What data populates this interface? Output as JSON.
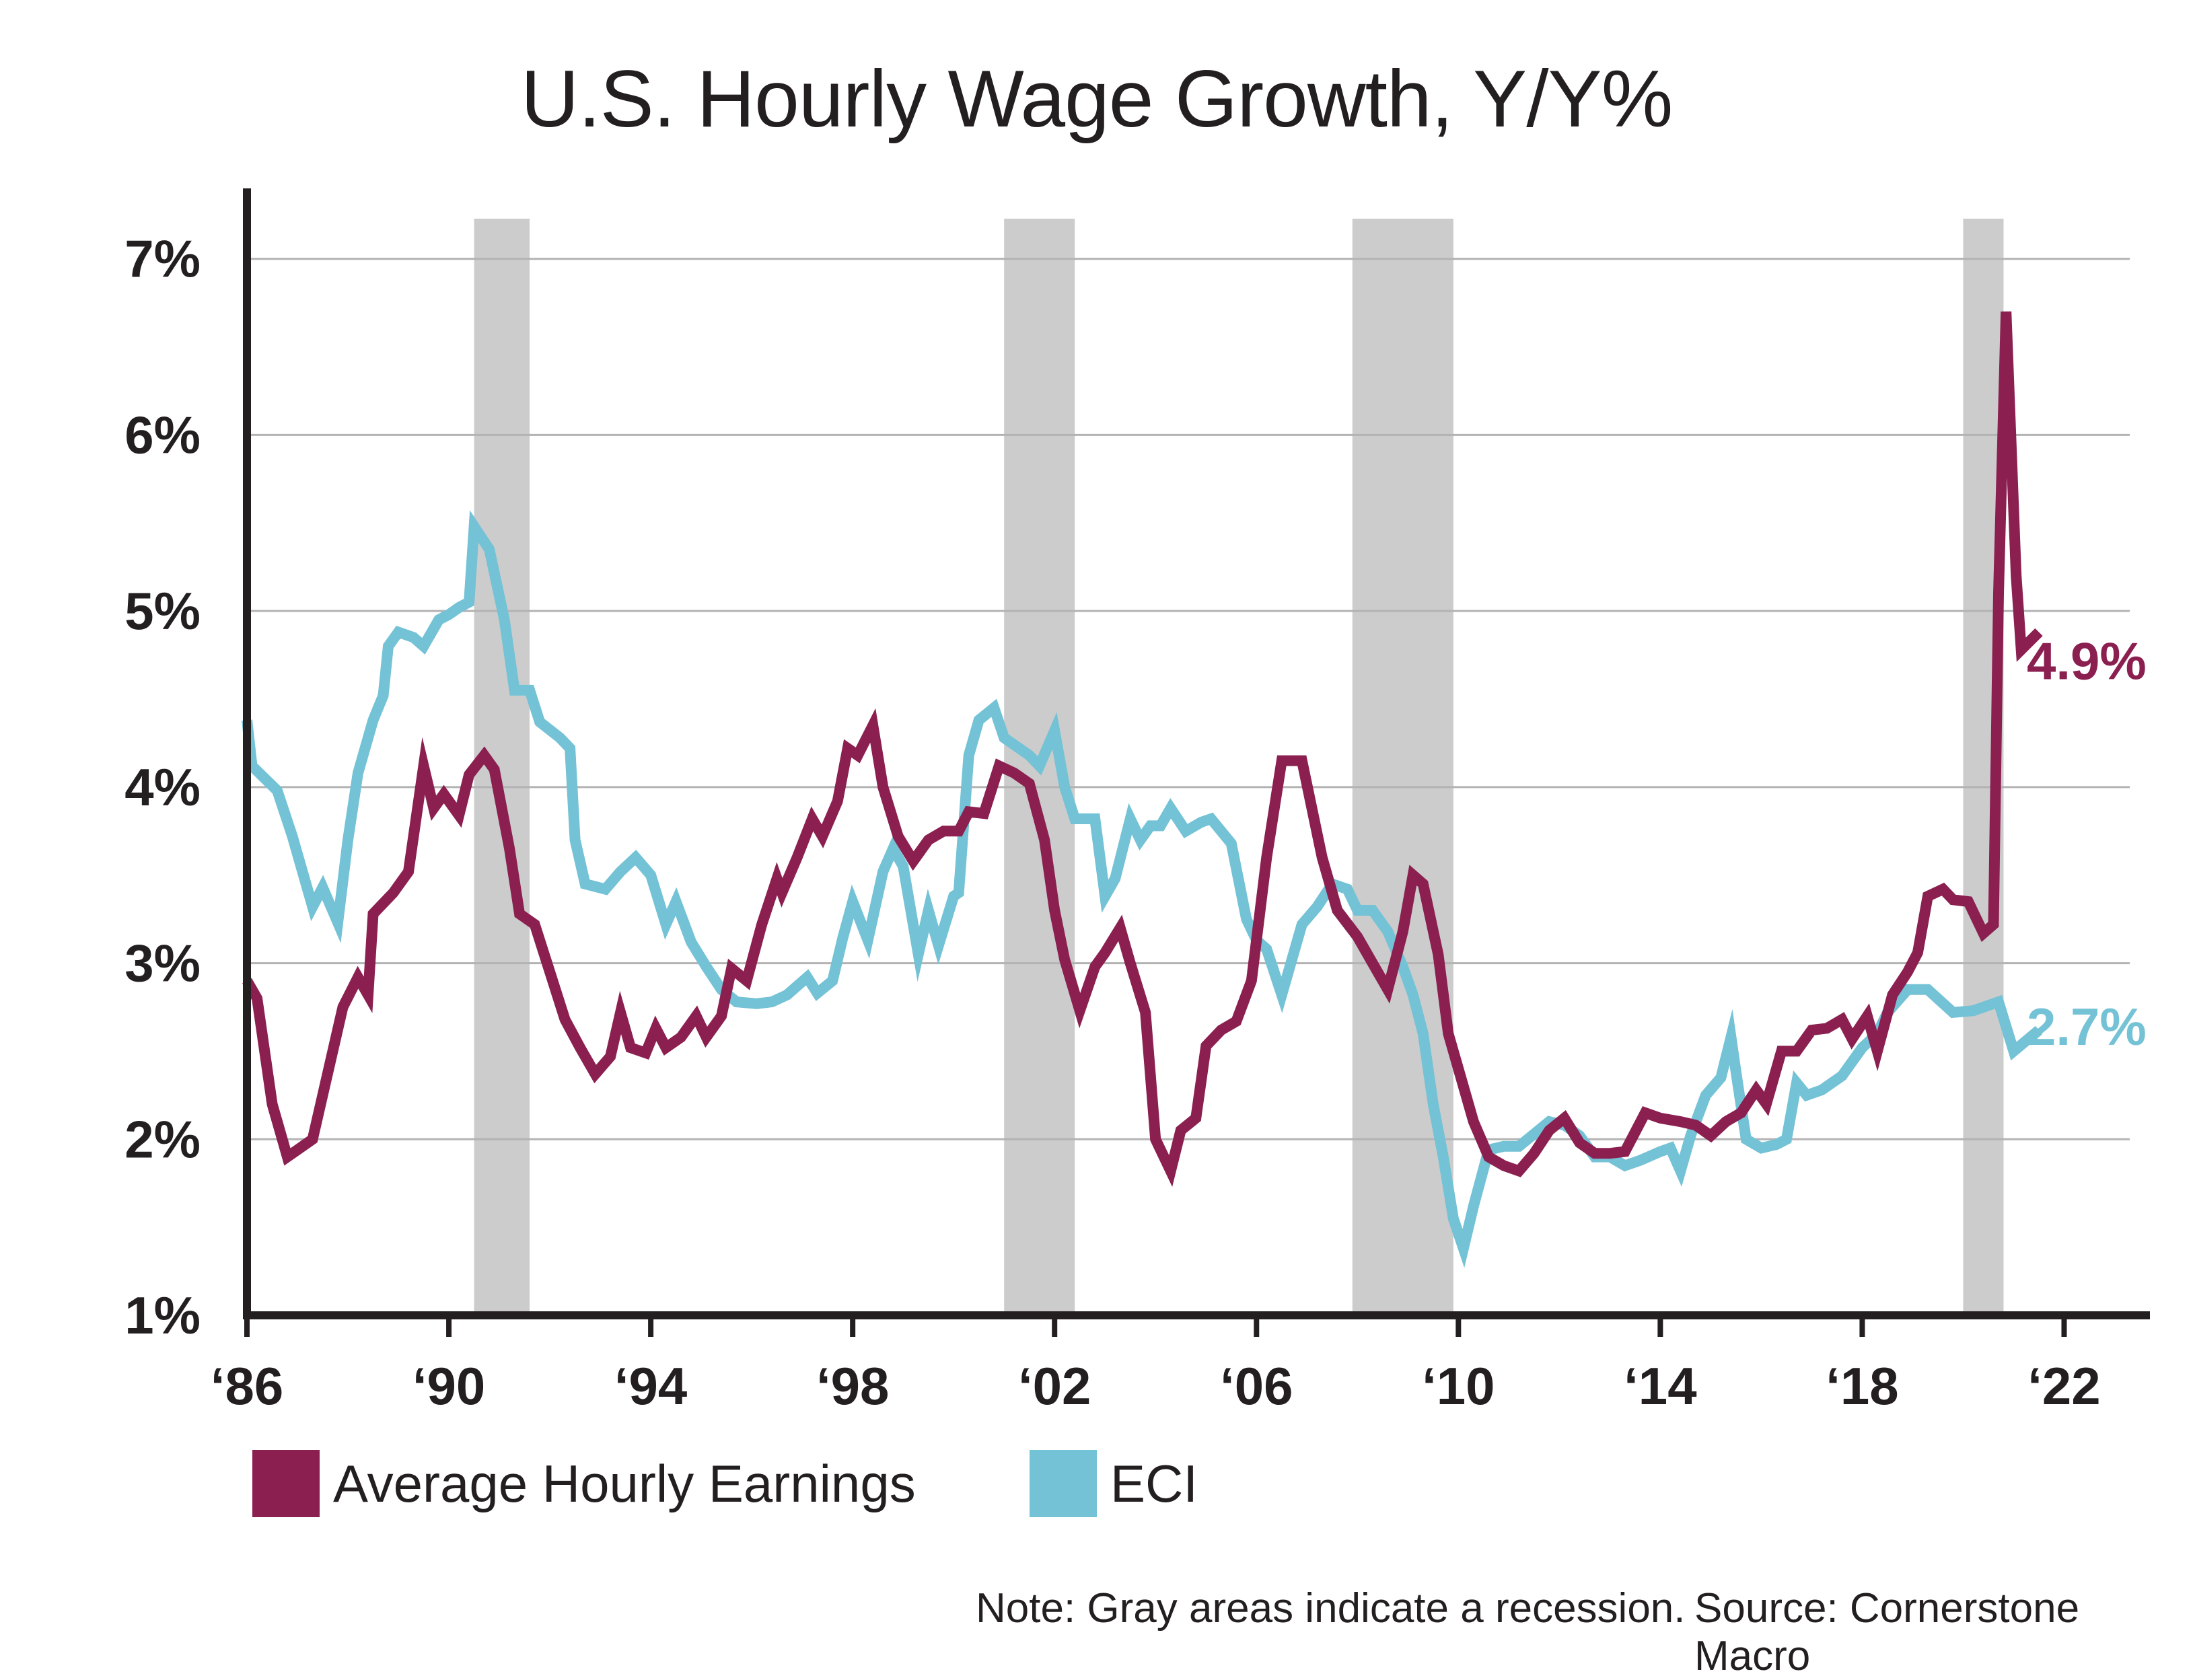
{
  "chart_data": {
    "type": "line",
    "title": "U.S. Hourly Wage Growth, Y/Y%",
    "xlabel": "",
    "ylabel": "",
    "xlim": [
      1986,
      2023.7
    ],
    "ylim": [
      1,
      7.4
    ],
    "y_ticks": [
      1,
      2,
      3,
      4,
      5,
      6,
      7
    ],
    "y_tick_labels": [
      "1%",
      "2%",
      "3%",
      "4%",
      "5%",
      "6%",
      "7%"
    ],
    "x_ticks": [
      1986,
      1990,
      1994,
      1998,
      2002,
      2006,
      2010,
      2014,
      2018,
      2022
    ],
    "x_tick_labels": [
      "‘86",
      "‘90",
      "‘94",
      "‘98",
      "‘02",
      "‘06",
      "‘10",
      "‘14",
      "‘18",
      "‘22"
    ],
    "grid": "horizontal",
    "recessions": [
      [
        1990.5,
        1991.6
      ],
      [
        2001.0,
        2002.4
      ],
      [
        2007.9,
        2009.9
      ],
      [
        2020.0,
        2020.8
      ]
    ],
    "series": [
      {
        "name": "Average Hourly Earnings",
        "color": "#8b2050",
        "end_label": "4.9%",
        "points": [
          [
            1986.0,
            2.9
          ],
          [
            1986.2,
            2.8
          ],
          [
            1986.5,
            2.2
          ],
          [
            1986.8,
            1.9
          ],
          [
            1987.3,
            2.0
          ],
          [
            1987.7,
            2.5
          ],
          [
            1987.9,
            2.75
          ],
          [
            1988.2,
            2.92
          ],
          [
            1988.4,
            2.82
          ],
          [
            1988.5,
            3.28
          ],
          [
            1988.9,
            3.4
          ],
          [
            1989.2,
            3.52
          ],
          [
            1989.5,
            4.12
          ],
          [
            1989.7,
            3.88
          ],
          [
            1989.9,
            3.96
          ],
          [
            1990.2,
            3.84
          ],
          [
            1990.4,
            4.07
          ],
          [
            1990.7,
            4.18
          ],
          [
            1990.9,
            4.1
          ],
          [
            1991.2,
            3.65
          ],
          [
            1991.4,
            3.28
          ],
          [
            1991.7,
            3.22
          ],
          [
            1992.0,
            2.95
          ],
          [
            1992.3,
            2.68
          ],
          [
            1992.6,
            2.52
          ],
          [
            1992.9,
            2.37
          ],
          [
            1993.2,
            2.47
          ],
          [
            1993.4,
            2.72
          ],
          [
            1993.6,
            2.52
          ],
          [
            1993.9,
            2.49
          ],
          [
            1994.1,
            2.63
          ],
          [
            1994.3,
            2.52
          ],
          [
            1994.6,
            2.58
          ],
          [
            1994.9,
            2.7
          ],
          [
            1995.1,
            2.58
          ],
          [
            1995.4,
            2.7
          ],
          [
            1995.6,
            2.97
          ],
          [
            1995.9,
            2.9
          ],
          [
            1996.2,
            3.22
          ],
          [
            1996.5,
            3.48
          ],
          [
            1996.6,
            3.4
          ],
          [
            1996.9,
            3.6
          ],
          [
            1997.2,
            3.82
          ],
          [
            1997.4,
            3.72
          ],
          [
            1997.7,
            3.92
          ],
          [
            1997.9,
            4.22
          ],
          [
            1998.1,
            4.18
          ],
          [
            1998.4,
            4.35
          ],
          [
            1998.6,
            4.0
          ],
          [
            1998.9,
            3.72
          ],
          [
            1999.2,
            3.58
          ],
          [
            1999.5,
            3.7
          ],
          [
            1999.8,
            3.75
          ],
          [
            2000.1,
            3.75
          ],
          [
            2000.3,
            3.86
          ],
          [
            2000.6,
            3.85
          ],
          [
            2000.9,
            4.12
          ],
          [
            2001.2,
            4.08
          ],
          [
            2001.5,
            4.02
          ],
          [
            2001.8,
            3.7
          ],
          [
            2002.0,
            3.3
          ],
          [
            2002.2,
            3.02
          ],
          [
            2002.5,
            2.73
          ],
          [
            2002.8,
            2.98
          ],
          [
            2003.0,
            3.06
          ],
          [
            2003.3,
            3.2
          ],
          [
            2003.5,
            3.0
          ],
          [
            2003.8,
            2.72
          ],
          [
            2004.0,
            2.0
          ],
          [
            2004.3,
            1.82
          ],
          [
            2004.5,
            2.05
          ],
          [
            2004.8,
            2.12
          ],
          [
            2005.0,
            2.53
          ],
          [
            2005.3,
            2.62
          ],
          [
            2005.6,
            2.67
          ],
          [
            2005.9,
            2.9
          ],
          [
            2006.2,
            3.6
          ],
          [
            2006.5,
            4.15
          ],
          [
            2006.9,
            4.15
          ],
          [
            2007.3,
            3.6
          ],
          [
            2007.6,
            3.3
          ],
          [
            2008.0,
            3.15
          ],
          [
            2008.3,
            3.0
          ],
          [
            2008.6,
            2.85
          ],
          [
            2008.9,
            3.18
          ],
          [
            2009.1,
            3.5
          ],
          [
            2009.3,
            3.45
          ],
          [
            2009.6,
            3.05
          ],
          [
            2009.8,
            2.6
          ],
          [
            2010.0,
            2.4
          ],
          [
            2010.3,
            2.1
          ],
          [
            2010.6,
            1.9
          ],
          [
            2010.9,
            1.85
          ],
          [
            2011.2,
            1.82
          ],
          [
            2011.5,
            1.92
          ],
          [
            2011.8,
            2.05
          ],
          [
            2012.1,
            2.12
          ],
          [
            2012.4,
            1.98
          ],
          [
            2012.7,
            1.92
          ],
          [
            2013.0,
            1.92
          ],
          [
            2013.3,
            1.93
          ],
          [
            2013.7,
            2.15
          ],
          [
            2014.0,
            2.12
          ],
          [
            2014.4,
            2.1
          ],
          [
            2014.7,
            2.08
          ],
          [
            2015.0,
            2.02
          ],
          [
            2015.3,
            2.1
          ],
          [
            2015.6,
            2.15
          ],
          [
            2015.9,
            2.28
          ],
          [
            2016.1,
            2.2
          ],
          [
            2016.4,
            2.5
          ],
          [
            2016.7,
            2.5
          ],
          [
            2017.0,
            2.62
          ],
          [
            2017.3,
            2.63
          ],
          [
            2017.6,
            2.68
          ],
          [
            2017.8,
            2.57
          ],
          [
            2018.1,
            2.7
          ],
          [
            2018.3,
            2.5
          ],
          [
            2018.6,
            2.82
          ],
          [
            2018.9,
            2.95
          ],
          [
            2019.1,
            3.06
          ],
          [
            2019.3,
            3.38
          ],
          [
            2019.6,
            3.42
          ],
          [
            2019.8,
            3.36
          ],
          [
            2020.1,
            3.35
          ],
          [
            2020.4,
            3.17
          ],
          [
            2020.6,
            3.22
          ],
          [
            2020.7,
            5.1
          ],
          [
            2020.85,
            6.7
          ],
          [
            2021.05,
            5.2
          ],
          [
            2021.15,
            4.78
          ],
          [
            2021.5,
            4.88
          ]
        ]
      },
      {
        "name": "ECI",
        "color": "#74c2d5",
        "end_label": "2.7%",
        "points": [
          [
            1986.0,
            4.38
          ],
          [
            1986.1,
            4.12
          ],
          [
            1986.6,
            3.98
          ],
          [
            1986.9,
            3.72
          ],
          [
            1987.1,
            3.52
          ],
          [
            1987.3,
            3.32
          ],
          [
            1987.5,
            3.43
          ],
          [
            1987.8,
            3.23
          ],
          [
            1988.0,
            3.7
          ],
          [
            1988.2,
            4.08
          ],
          [
            1988.5,
            4.38
          ],
          [
            1988.7,
            4.52
          ],
          [
            1988.8,
            4.8
          ],
          [
            1989.0,
            4.88
          ],
          [
            1989.3,
            4.85
          ],
          [
            1989.5,
            4.8
          ],
          [
            1989.8,
            4.95
          ],
          [
            1990.0,
            4.98
          ],
          [
            1990.2,
            5.02
          ],
          [
            1990.4,
            5.05
          ],
          [
            1990.5,
            5.48
          ],
          [
            1990.8,
            5.35
          ],
          [
            1991.1,
            4.95
          ],
          [
            1991.3,
            4.55
          ],
          [
            1991.6,
            4.55
          ],
          [
            1991.8,
            4.37
          ],
          [
            1992.2,
            4.28
          ],
          [
            1992.4,
            4.22
          ],
          [
            1992.5,
            3.7
          ],
          [
            1992.7,
            3.45
          ],
          [
            1993.1,
            3.42
          ],
          [
            1993.4,
            3.52
          ],
          [
            1993.7,
            3.6
          ],
          [
            1994.0,
            3.5
          ],
          [
            1994.3,
            3.22
          ],
          [
            1994.5,
            3.35
          ],
          [
            1994.8,
            3.12
          ],
          [
            1995.1,
            2.98
          ],
          [
            1995.4,
            2.85
          ],
          [
            1995.7,
            2.78
          ],
          [
            1996.1,
            2.77
          ],
          [
            1996.4,
            2.78
          ],
          [
            1996.7,
            2.82
          ],
          [
            1997.1,
            2.92
          ],
          [
            1997.3,
            2.83
          ],
          [
            1997.6,
            2.9
          ],
          [
            1997.8,
            3.14
          ],
          [
            1998.0,
            3.35
          ],
          [
            1998.3,
            3.13
          ],
          [
            1998.6,
            3.52
          ],
          [
            1998.8,
            3.65
          ],
          [
            1999.0,
            3.55
          ],
          [
            1999.3,
            3.05
          ],
          [
            1999.5,
            3.3
          ],
          [
            1999.7,
            3.1
          ],
          [
            2000.0,
            3.38
          ],
          [
            2000.1,
            3.4
          ],
          [
            2000.3,
            4.18
          ],
          [
            2000.5,
            4.38
          ],
          [
            2000.8,
            4.45
          ],
          [
            2001.0,
            4.28
          ],
          [
            2001.5,
            4.18
          ],
          [
            2001.7,
            4.12
          ],
          [
            2002.0,
            4.32
          ],
          [
            2002.2,
            4.0
          ],
          [
            2002.4,
            3.82
          ],
          [
            2002.8,
            3.82
          ],
          [
            2003.0,
            3.38
          ],
          [
            2003.2,
            3.48
          ],
          [
            2003.5,
            3.82
          ],
          [
            2003.7,
            3.7
          ],
          [
            2003.9,
            3.78
          ],
          [
            2004.1,
            3.78
          ],
          [
            2004.3,
            3.88
          ],
          [
            2004.6,
            3.75
          ],
          [
            2004.9,
            3.8
          ],
          [
            2005.1,
            3.82
          ],
          [
            2005.5,
            3.68
          ],
          [
            2005.8,
            3.25
          ],
          [
            2006.0,
            3.13
          ],
          [
            2006.2,
            3.08
          ],
          [
            2006.5,
            2.82
          ],
          [
            2006.9,
            3.22
          ],
          [
            2007.2,
            3.32
          ],
          [
            2007.5,
            3.45
          ],
          [
            2007.8,
            3.42
          ],
          [
            2008.0,
            3.3
          ],
          [
            2008.3,
            3.3
          ],
          [
            2008.6,
            3.18
          ],
          [
            2008.9,
            2.98
          ],
          [
            2009.1,
            2.82
          ],
          [
            2009.3,
            2.6
          ],
          [
            2009.5,
            2.2
          ],
          [
            2009.7,
            1.9
          ],
          [
            2009.9,
            1.55
          ],
          [
            2010.1,
            1.38
          ],
          [
            2010.3,
            1.62
          ],
          [
            2010.6,
            1.94
          ],
          [
            2010.9,
            1.96
          ],
          [
            2011.2,
            1.96
          ],
          [
            2011.5,
            2.03
          ],
          [
            2011.8,
            2.1
          ],
          [
            2012.1,
            2.08
          ],
          [
            2012.4,
            2.02
          ],
          [
            2012.7,
            1.9
          ],
          [
            2013.0,
            1.9
          ],
          [
            2013.3,
            1.85
          ],
          [
            2013.6,
            1.88
          ],
          [
            2014.0,
            1.93
          ],
          [
            2014.2,
            1.95
          ],
          [
            2014.4,
            1.82
          ],
          [
            2014.6,
            2.02
          ],
          [
            2014.9,
            2.25
          ],
          [
            2015.2,
            2.35
          ],
          [
            2015.4,
            2.58
          ],
          [
            2015.5,
            2.38
          ],
          [
            2015.7,
            2.0
          ],
          [
            2016.0,
            1.95
          ],
          [
            2016.3,
            1.97
          ],
          [
            2016.5,
            2.0
          ],
          [
            2016.7,
            2.32
          ],
          [
            2016.9,
            2.25
          ],
          [
            2017.2,
            2.28
          ],
          [
            2017.6,
            2.36
          ],
          [
            2018.0,
            2.52
          ],
          [
            2018.3,
            2.6
          ],
          [
            2018.5,
            2.72
          ],
          [
            2018.9,
            2.85
          ],
          [
            2019.3,
            2.85
          ],
          [
            2019.8,
            2.72
          ],
          [
            2020.2,
            2.73
          ],
          [
            2020.7,
            2.78
          ],
          [
            2021.0,
            2.5
          ],
          [
            2021.5,
            2.62
          ]
        ]
      }
    ]
  },
  "legend": [
    {
      "label": "Average Hourly Earnings",
      "color": "#8b2050"
    },
    {
      "label": "ECI",
      "color": "#74c2d5"
    }
  ],
  "footer": {
    "note": "Note: Gray areas indicate a recession.",
    "source": "Source: Cornerstone Macro"
  }
}
